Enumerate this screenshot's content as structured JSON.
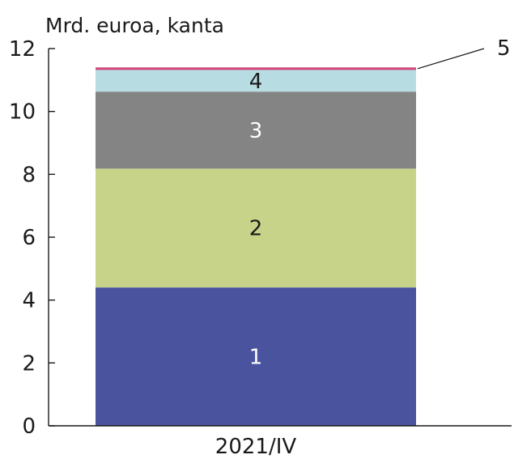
{
  "chart_data": {
    "type": "bar",
    "stacked": true,
    "unit_label": "Mrd. euroa, kanta",
    "categories": [
      "2021/IV"
    ],
    "ylim": [
      0,
      12
    ],
    "yticks": [
      "0",
      "2",
      "4",
      "6",
      "8",
      "10",
      "12"
    ],
    "grid": false,
    "legend": "none",
    "series": [
      {
        "name": "1",
        "values": [
          4.4
        ],
        "color": "#4a539d",
        "label_color": "#ffffff"
      },
      {
        "name": "2",
        "values": [
          3.78
        ],
        "color": "#c8d38a",
        "label_color": "#1a1a1a"
      },
      {
        "name": "3",
        "values": [
          2.45
        ],
        "color": "#848484",
        "label_color": "#ffffff"
      },
      {
        "name": "4",
        "values": [
          0.69
        ],
        "color": "#b7dde3",
        "label_color": "#1a1a1a"
      },
      {
        "name": "5",
        "values": [
          0.08
        ],
        "color": "#d0467a",
        "label_color": "#1a1a1a"
      }
    ]
  }
}
